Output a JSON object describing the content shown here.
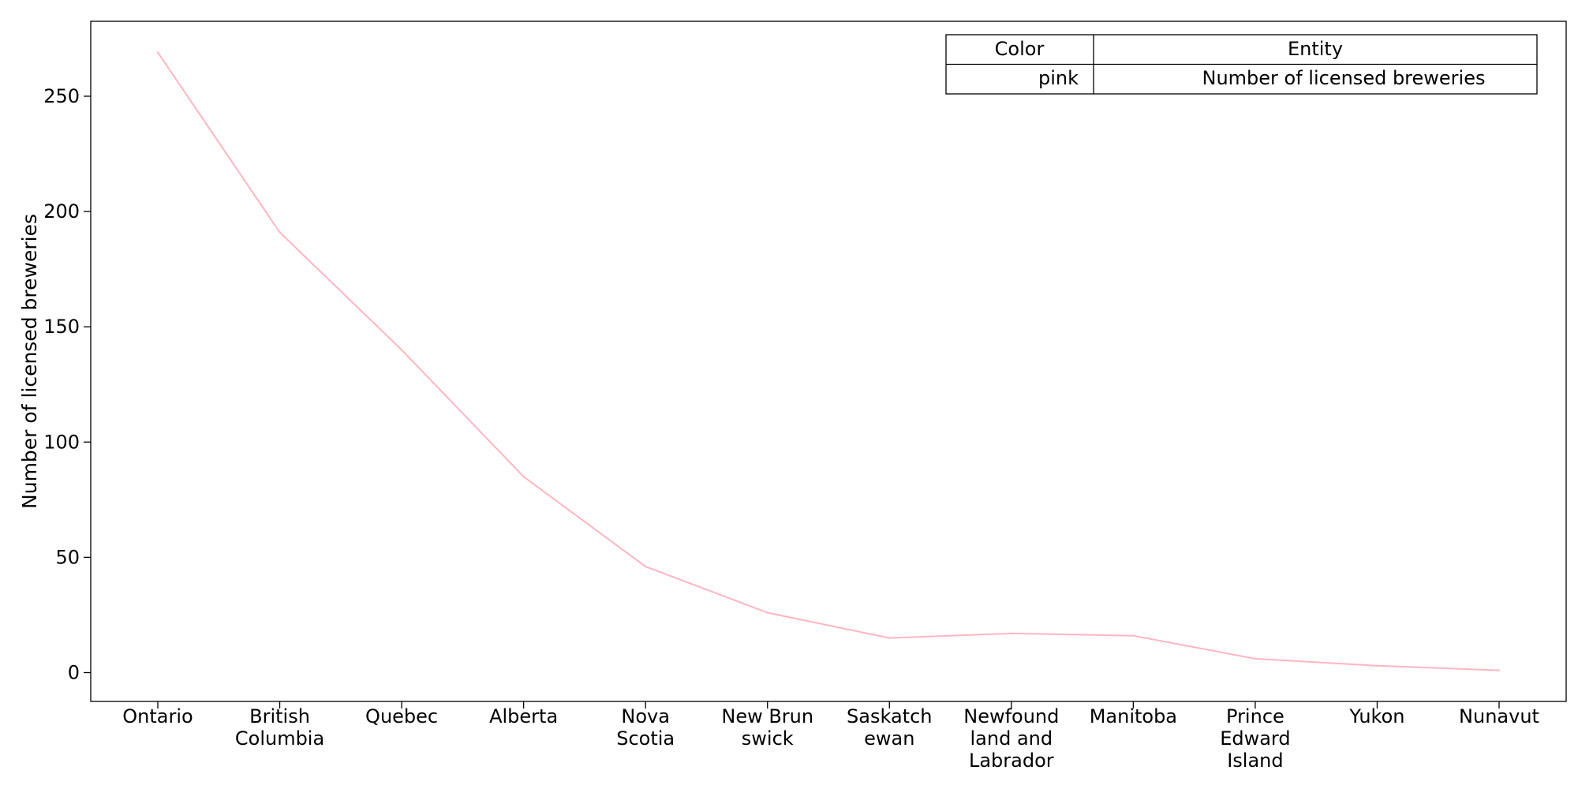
{
  "chart_data": {
    "type": "line",
    "categories": [
      "Ontario",
      "British\nColumbia",
      "Quebec",
      "Alberta",
      "Nova\nScotia",
      "New Brun\nswick",
      "Saskatch\newan",
      "Newfound\nland and\nLabrador",
      "Manitoba",
      "Prince\nEdward\nIsland",
      "Yukon",
      "Nunavut"
    ],
    "series": [
      {
        "name": "Number of licensed breweries",
        "color": "#ffb6c1",
        "values": [
          269,
          191,
          140,
          85,
          46,
          26,
          15,
          17,
          16,
          6,
          3,
          1
        ]
      }
    ],
    "xlabel": "",
    "ylabel": "Number of licensed breweries",
    "ylim": [
      -12.5,
      282.5
    ],
    "yticks": [
      0,
      50,
      100,
      150,
      200,
      250
    ],
    "grid": false,
    "legend": {
      "placement": "top-right",
      "headers": [
        "Color",
        "Entity"
      ],
      "rows": [
        [
          "pink",
          "Number of licensed breweries"
        ]
      ]
    }
  }
}
